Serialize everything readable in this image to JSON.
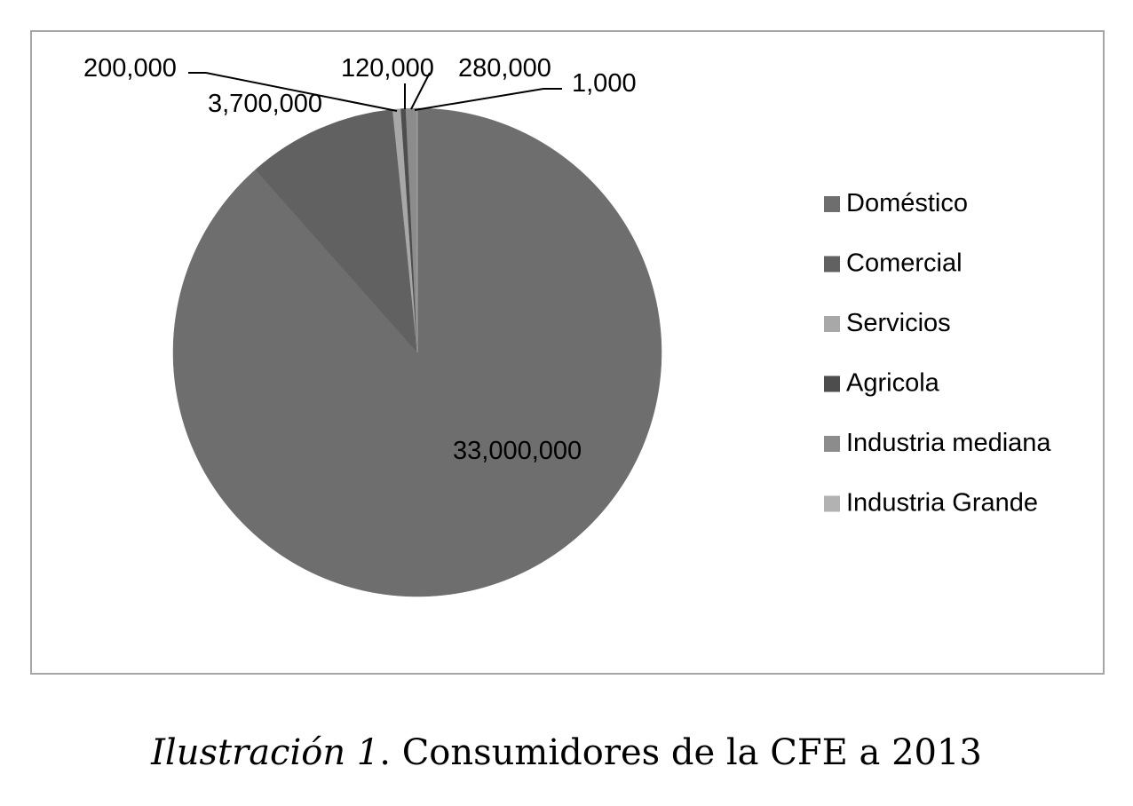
{
  "chart_data": {
    "type": "pie",
    "categories": [
      "Doméstico",
      "Comercial",
      "Servicios",
      "Agricola",
      "Industria mediana",
      "Industria Grande"
    ],
    "values": [
      33000000,
      3700000,
      200000,
      120000,
      280000,
      1000
    ],
    "data_labels": [
      "33,000,000",
      "3,700,000",
      "200,000",
      "120,000",
      "280,000",
      "1,000"
    ],
    "colors": [
      "#6e6e6e",
      "#616161",
      "#a8a8a8",
      "#4d4d4d",
      "#8c8c8c",
      "#b2b2b2"
    ],
    "legend": {
      "position": "right",
      "entries": [
        "Doméstico",
        "Comercial",
        "Servicios",
        "Agricola",
        "Industria mediana",
        "Industria Grande"
      ]
    },
    "title": ""
  },
  "caption": {
    "label": "Ilustración 1",
    "text": ". Consumidores de la CFE a 2013"
  }
}
